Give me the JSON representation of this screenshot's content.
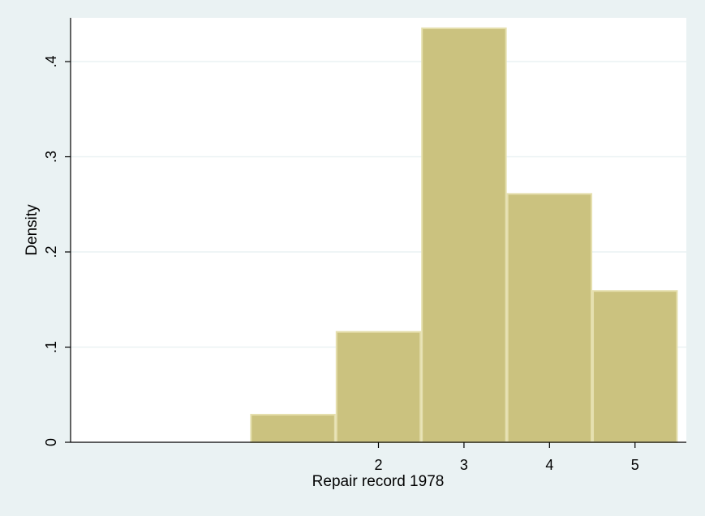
{
  "colors": {
    "background": "#eaf2f3",
    "plot_region": "#ffffff",
    "bar_fill": "#cbc27f",
    "bar_outline": "#e5dfae",
    "gridline": "#eaf2f3",
    "axis": "#000000"
  },
  "chart_data": {
    "type": "bar",
    "subtype": "histogram",
    "title": "",
    "xlabel": "Repair record 1978",
    "ylabel": "Density",
    "bins": [
      {
        "start": 0.5,
        "end": 1.5,
        "density": 0.029
      },
      {
        "start": 1.5,
        "end": 2.5,
        "density": 0.116
      },
      {
        "start": 2.5,
        "end": 3.5,
        "density": 0.435
      },
      {
        "start": 3.5,
        "end": 4.5,
        "density": 0.261
      },
      {
        "start": 4.5,
        "end": 5.5,
        "density": 0.159
      }
    ],
    "xlim": [
      -1.6,
      5.6
    ],
    "ylim": [
      0,
      0.446
    ],
    "xticks": [
      {
        "value": 2,
        "label": "2"
      },
      {
        "value": 3,
        "label": "3"
      },
      {
        "value": 4,
        "label": "4"
      },
      {
        "value": 5,
        "label": "5"
      }
    ],
    "yticks": [
      {
        "value": 0,
        "label": "0"
      },
      {
        "value": 0.1,
        "label": ".1"
      },
      {
        "value": 0.2,
        "label": ".2"
      },
      {
        "value": 0.3,
        "label": ".3"
      },
      {
        "value": 0.4,
        "label": ".4"
      }
    ],
    "grid": true,
    "legend": "none"
  }
}
